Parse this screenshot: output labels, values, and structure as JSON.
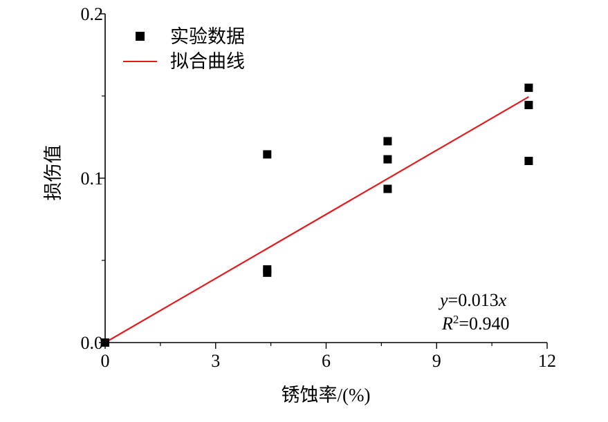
{
  "chart_data": {
    "type": "scatter",
    "title": "",
    "xlabel": "锈蚀率/(%)",
    "ylabel": "损伤值",
    "xlim": [
      0,
      12
    ],
    "ylim": [
      0,
      0.2
    ],
    "xticks": [
      0,
      3,
      6,
      9,
      12
    ],
    "xtick_labels": [
      "0",
      "3",
      "6",
      "9",
      "12"
    ],
    "yticks": [
      0,
      0.1,
      0.2
    ],
    "ytick_labels": [
      "0.0",
      "0.1",
      "0.2"
    ],
    "legend_position": "top-left",
    "grid": false,
    "series": [
      {
        "name": "实验数据",
        "kind": "scatter",
        "marker": "square",
        "color": "#000000",
        "points": [
          {
            "x": 0,
            "y": 0.0
          },
          {
            "x": 4.4,
            "y": 0.1145
          },
          {
            "x": 4.4,
            "y": 0.0445
          },
          {
            "x": 4.4,
            "y": 0.0425
          },
          {
            "x": 7.67,
            "y": 0.1225
          },
          {
            "x": 7.67,
            "y": 0.1115
          },
          {
            "x": 7.67,
            "y": 0.0935
          },
          {
            "x": 11.5,
            "y": 0.155
          },
          {
            "x": 11.5,
            "y": 0.1445
          },
          {
            "x": 11.5,
            "y": 0.1105
          }
        ]
      },
      {
        "name": "拟合曲线",
        "kind": "line",
        "color": "#e31a1c",
        "slope": 0.013,
        "x_range": [
          0,
          11.5
        ]
      }
    ],
    "annotations": {
      "equation_y": "y",
      "equation_rest": "=0.013",
      "equation_x": "x",
      "r2_R": "R",
      "r2_sup": "2",
      "r2_rest": "=0.940"
    }
  }
}
